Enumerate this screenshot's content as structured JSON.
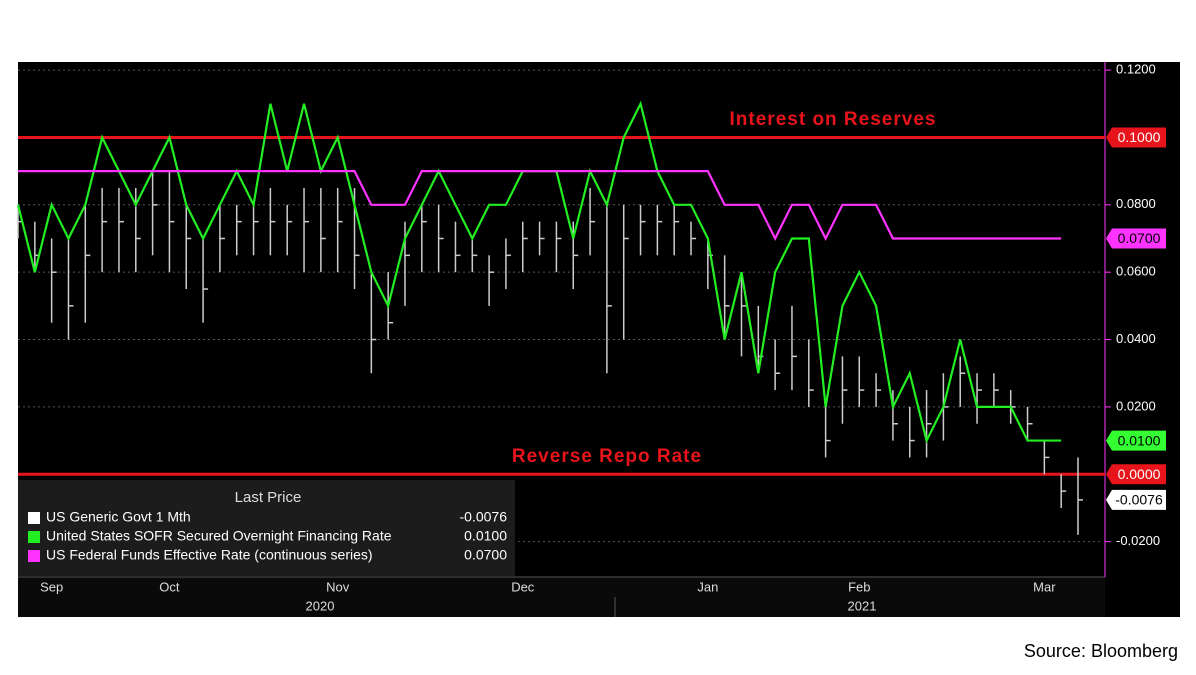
{
  "chart_data": {
    "type": "line",
    "categories": [
      null,
      null,
      "Sep",
      null,
      null,
      null,
      null,
      null,
      null,
      "Oct",
      null,
      null,
      null,
      null,
      null,
      null,
      null,
      null,
      null,
      "Nov",
      null,
      null,
      null,
      null,
      null,
      null,
      null,
      null,
      null,
      null,
      "Dec",
      null,
      null,
      null,
      null,
      null,
      null,
      null,
      null,
      null,
      null,
      "Jan",
      null,
      null,
      null,
      null,
      null,
      null,
      null,
      null,
      "Feb",
      null,
      null,
      null,
      null,
      null,
      null,
      null,
      null,
      null,
      null,
      "Mar",
      null,
      null
    ],
    "year_labels": [
      "2020",
      "2021"
    ],
    "ylim": [
      -0.0305,
      0.1224
    ],
    "yticks": [
      {
        "value": -0.02,
        "label": "-0.0200"
      },
      {
        "value": 0.02,
        "label": "0.0200"
      },
      {
        "value": 0.04,
        "label": "0.0400"
      },
      {
        "value": 0.06,
        "label": "0.0600"
      },
      {
        "value": 0.08,
        "label": "0.0800"
      },
      {
        "value": 0.12,
        "label": "0.1200"
      }
    ],
    "grid": true,
    "legend_title": "Last Price",
    "series": [
      {
        "name": "US Generic Govt 1 Mth",
        "color": "#ffffff",
        "style": "range",
        "values": [
          0.075,
          0.065,
          0.06,
          0.05,
          0.065,
          0.075,
          0.075,
          0.07,
          0.08,
          0.075,
          0.07,
          0.055,
          0.07,
          0.075,
          0.075,
          0.075,
          0.075,
          0.075,
          0.07,
          0.075,
          0.065,
          0.04,
          0.045,
          0.065,
          0.075,
          0.07,
          0.065,
          0.065,
          0.06,
          0.065,
          0.07,
          0.07,
          0.07,
          0.065,
          0.075,
          0.05,
          0.07,
          0.075,
          0.075,
          0.075,
          0.07,
          0.065,
          0.05,
          0.05,
          0.035,
          0.03,
          0.035,
          0.025,
          0.01,
          0.025,
          0.025,
          0.025,
          0.015,
          0.01,
          0.015,
          0.02,
          0.03,
          0.025,
          0.025,
          0.02,
          0.015,
          0.005,
          -0.005,
          -0.0076
        ],
        "high": [
          0.08,
          0.075,
          0.07,
          0.07,
          0.08,
          0.085,
          0.085,
          0.085,
          0.09,
          0.09,
          0.08,
          0.07,
          0.08,
          0.08,
          0.08,
          0.085,
          0.08,
          0.085,
          0.085,
          0.085,
          0.085,
          0.06,
          0.06,
          0.075,
          0.08,
          0.08,
          0.075,
          0.07,
          0.065,
          0.07,
          0.075,
          0.075,
          0.075,
          0.075,
          0.085,
          0.08,
          0.08,
          0.08,
          0.08,
          0.08,
          0.075,
          0.07,
          0.065,
          0.06,
          0.05,
          0.04,
          0.05,
          0.04,
          0.02,
          0.035,
          0.035,
          0.03,
          0.025,
          0.02,
          0.025,
          0.03,
          0.035,
          0.03,
          0.03,
          0.025,
          0.02,
          0.01,
          0,
          0.005
        ],
        "low": [
          0.07,
          0.06,
          0.045,
          0.04,
          0.045,
          0.06,
          0.06,
          0.06,
          0.065,
          0.06,
          0.055,
          0.045,
          0.06,
          0.065,
          0.065,
          0.065,
          0.065,
          0.06,
          0.06,
          0.06,
          0.055,
          0.03,
          0.04,
          0.05,
          0.06,
          0.06,
          0.06,
          0.06,
          0.05,
          0.055,
          0.06,
          0.065,
          0.06,
          0.055,
          0.065,
          0.03,
          0.04,
          0.065,
          0.065,
          0.065,
          0.065,
          0.055,
          0.04,
          0.035,
          0.03,
          0.025,
          0.025,
          0.02,
          0.005,
          0.015,
          0.02,
          0.02,
          0.01,
          0.005,
          0.005,
          0.01,
          0.02,
          0.015,
          0.02,
          0.015,
          0.01,
          0,
          -0.01,
          -0.018
        ],
        "value_labels": [
          null,
          null,
          null,
          null,
          null,
          null,
          null,
          null,
          null,
          null,
          null,
          null,
          null,
          null,
          null,
          null,
          null,
          null,
          null,
          null,
          null,
          null,
          null,
          null,
          null,
          null,
          null,
          null,
          null,
          null,
          null,
          null,
          null,
          null,
          null,
          null,
          null,
          null,
          null,
          null,
          null,
          null,
          null,
          null,
          null,
          null,
          null,
          null,
          null,
          null,
          null,
          null,
          null,
          null,
          null,
          null,
          null,
          null,
          null,
          null,
          null,
          null,
          null,
          "-0.0076"
        ]
      },
      {
        "name": "United States SOFR Secured Overnight Financing Rate",
        "color": "#22ee22",
        "style": "line",
        "values": [
          0.08,
          0.06,
          0.08,
          0.07,
          0.08,
          0.1,
          0.09,
          0.08,
          0.09,
          0.1,
          0.08,
          0.07,
          0.08,
          0.09,
          0.08,
          0.11,
          0.09,
          0.11,
          0.09,
          0.1,
          0.08,
          0.06,
          0.05,
          0.07,
          0.08,
          0.09,
          0.08,
          0.07,
          0.08,
          0.08,
          0.09,
          0.09,
          0.09,
          0.07,
          0.09,
          0.08,
          0.1,
          0.11,
          0.09,
          0.08,
          0.08,
          0.07,
          0.04,
          0.06,
          0.03,
          0.06,
          0.07,
          0.07,
          0.02,
          0.05,
          0.06,
          0.05,
          0.02,
          0.03,
          0.01,
          0.02,
          0.04,
          0.02,
          0.02,
          0.02,
          0.01,
          0.01,
          0.01,
          null
        ],
        "value_labels": [
          null,
          null,
          null,
          null,
          null,
          null,
          null,
          null,
          null,
          null,
          null,
          null,
          null,
          null,
          null,
          null,
          null,
          null,
          null,
          null,
          null,
          null,
          null,
          null,
          null,
          null,
          null,
          null,
          null,
          null,
          null,
          null,
          null,
          null,
          null,
          null,
          null,
          null,
          null,
          null,
          null,
          null,
          null,
          null,
          null,
          null,
          null,
          null,
          null,
          null,
          null,
          null,
          null,
          null,
          null,
          null,
          null,
          null,
          null,
          null,
          null,
          null,
          "0.0100",
          null
        ]
      },
      {
        "name": "US Federal Funds Effective Rate (continuous series)",
        "color": "#ff33ff",
        "style": "line",
        "values": [
          0.09,
          0.09,
          0.09,
          0.09,
          0.09,
          0.09,
          0.09,
          0.09,
          0.09,
          0.09,
          0.09,
          0.09,
          0.09,
          0.09,
          0.09,
          0.09,
          0.09,
          0.09,
          0.09,
          0.09,
          0.09,
          0.08,
          0.08,
          0.08,
          0.09,
          0.09,
          0.09,
          0.09,
          0.09,
          0.09,
          0.09,
          0.09,
          0.09,
          0.09,
          0.09,
          0.09,
          0.09,
          0.09,
          0.09,
          0.09,
          0.09,
          0.09,
          0.08,
          0.08,
          0.08,
          0.07,
          0.08,
          0.08,
          0.07,
          0.08,
          0.08,
          0.08,
          0.07,
          0.07,
          0.07,
          0.07,
          0.07,
          0.07,
          0.07,
          0.07,
          0.07,
          0.07,
          0.07,
          null
        ],
        "value_labels": [
          null,
          null,
          null,
          null,
          null,
          null,
          null,
          null,
          null,
          null,
          null,
          null,
          null,
          null,
          null,
          null,
          null,
          null,
          null,
          null,
          null,
          null,
          null,
          null,
          null,
          null,
          null,
          null,
          null,
          null,
          null,
          null,
          null,
          null,
          null,
          null,
          null,
          null,
          null,
          null,
          null,
          null,
          null,
          null,
          null,
          null,
          null,
          null,
          null,
          null,
          null,
          null,
          null,
          null,
          null,
          null,
          null,
          null,
          null,
          null,
          null,
          null,
          "0.0700",
          null
        ]
      }
    ],
    "reference_lines": [
      {
        "name": "Interest on Reserves",
        "value": 0.1,
        "label": "0.1000",
        "color": "#e8141b"
      },
      {
        "name": "Reverse Repo Rate",
        "value": 0,
        "label": "0.0000",
        "color": "#e8141b"
      }
    ],
    "source": "Source: Bloomberg"
  }
}
